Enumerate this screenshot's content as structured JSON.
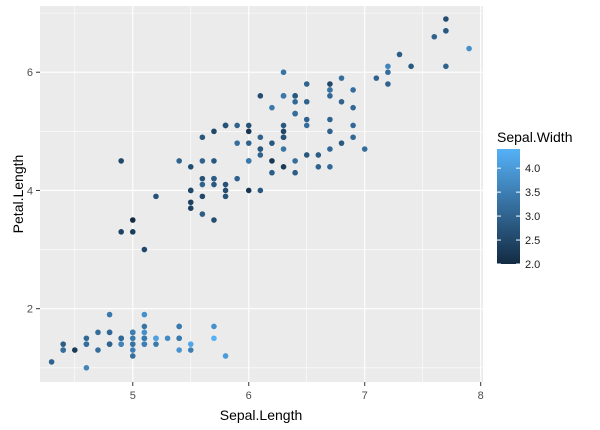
{
  "chart_data": {
    "type": "scatter",
    "title": "",
    "xlabel": "Sepal.Length",
    "ylabel": "Petal.Length",
    "xlim": [
      4.2,
      8.02
    ],
    "ylim": [
      0.76,
      7.12
    ],
    "x_ticks": [
      5,
      6,
      7,
      8
    ],
    "y_ticks": [
      2,
      4,
      6
    ],
    "x_tick_labels": [
      "5",
      "6",
      "7",
      "8"
    ],
    "y_tick_labels": [
      "2",
      "4",
      "6"
    ],
    "grid": true,
    "panel_background": "#ebebeb",
    "grid_color": "#ffffff",
    "legend": {
      "title": "Sepal.Width",
      "placement": "right",
      "type": "colorbar",
      "range": [
        2.0,
        4.4
      ],
      "breaks": [
        2.0,
        2.5,
        3.0,
        3.5,
        4.0
      ],
      "break_labels": [
        "2.0",
        "2.5",
        "3.0",
        "3.5",
        "4.0"
      ],
      "low_color": "#132b43",
      "high_color": "#56b1f7"
    },
    "color_variable": "Sepal.Width",
    "points": [
      [
        5.1,
        1.4,
        3.5
      ],
      [
        4.9,
        1.4,
        3.0
      ],
      [
        4.7,
        1.3,
        3.2
      ],
      [
        4.6,
        1.5,
        3.1
      ],
      [
        5.0,
        1.4,
        3.6
      ],
      [
        5.4,
        1.7,
        3.9
      ],
      [
        4.6,
        1.4,
        3.4
      ],
      [
        5.0,
        1.5,
        3.4
      ],
      [
        4.4,
        1.4,
        2.9
      ],
      [
        4.9,
        1.5,
        3.1
      ],
      [
        5.4,
        1.5,
        3.7
      ],
      [
        4.8,
        1.6,
        3.4
      ],
      [
        4.8,
        1.4,
        3.0
      ],
      [
        4.3,
        1.1,
        3.0
      ],
      [
        5.8,
        1.2,
        4.0
      ],
      [
        5.7,
        1.5,
        4.4
      ],
      [
        5.4,
        1.3,
        3.9
      ],
      [
        5.1,
        1.4,
        3.5
      ],
      [
        5.7,
        1.7,
        3.8
      ],
      [
        5.1,
        1.5,
        3.8
      ],
      [
        5.4,
        1.7,
        3.4
      ],
      [
        5.1,
        1.5,
        3.7
      ],
      [
        4.6,
        1.0,
        3.6
      ],
      [
        5.1,
        1.7,
        3.3
      ],
      [
        4.8,
        1.9,
        3.4
      ],
      [
        5.0,
        1.6,
        3.0
      ],
      [
        5.0,
        1.6,
        3.4
      ],
      [
        5.2,
        1.5,
        3.5
      ],
      [
        5.2,
        1.4,
        3.4
      ],
      [
        4.7,
        1.6,
        3.2
      ],
      [
        4.8,
        1.6,
        3.1
      ],
      [
        5.4,
        1.5,
        3.4
      ],
      [
        5.2,
        1.5,
        4.1
      ],
      [
        5.5,
        1.4,
        4.2
      ],
      [
        4.9,
        1.5,
        3.1
      ],
      [
        5.0,
        1.2,
        3.2
      ],
      [
        5.5,
        1.3,
        3.5
      ],
      [
        4.9,
        1.4,
        3.6
      ],
      [
        4.4,
        1.3,
        3.0
      ],
      [
        5.1,
        1.5,
        3.4
      ],
      [
        5.0,
        1.3,
        3.5
      ],
      [
        4.5,
        1.3,
        2.3
      ],
      [
        4.4,
        1.3,
        3.2
      ],
      [
        5.0,
        1.6,
        3.5
      ],
      [
        5.1,
        1.9,
        3.8
      ],
      [
        4.8,
        1.4,
        3.0
      ],
      [
        5.1,
        1.6,
        3.8
      ],
      [
        4.6,
        1.4,
        3.2
      ],
      [
        5.3,
        1.5,
        3.7
      ],
      [
        5.0,
        1.4,
        3.3
      ],
      [
        7.0,
        4.7,
        3.2
      ],
      [
        6.4,
        4.5,
        3.2
      ],
      [
        6.9,
        4.9,
        3.1
      ],
      [
        5.5,
        4.0,
        2.3
      ],
      [
        6.5,
        4.6,
        2.8
      ],
      [
        5.7,
        4.5,
        2.8
      ],
      [
        6.3,
        4.7,
        3.3
      ],
      [
        4.9,
        3.3,
        2.4
      ],
      [
        6.6,
        4.6,
        2.9
      ],
      [
        5.2,
        3.9,
        2.7
      ],
      [
        5.0,
        3.5,
        2.0
      ],
      [
        5.9,
        4.2,
        3.0
      ],
      [
        6.0,
        4.0,
        2.2
      ],
      [
        6.1,
        4.7,
        2.9
      ],
      [
        5.6,
        3.6,
        2.9
      ],
      [
        6.7,
        4.4,
        3.1
      ],
      [
        5.6,
        4.5,
        3.0
      ],
      [
        5.8,
        4.1,
        2.7
      ],
      [
        6.2,
        4.5,
        2.2
      ],
      [
        5.6,
        3.9,
        2.5
      ],
      [
        5.9,
        4.8,
        3.2
      ],
      [
        6.1,
        4.0,
        2.8
      ],
      [
        6.3,
        4.9,
        2.5
      ],
      [
        6.1,
        4.7,
        2.8
      ],
      [
        6.4,
        4.3,
        2.9
      ],
      [
        6.6,
        4.4,
        3.0
      ],
      [
        6.8,
        4.8,
        2.8
      ],
      [
        6.7,
        5.0,
        3.0
      ],
      [
        6.0,
        4.5,
        2.9
      ],
      [
        5.7,
        3.5,
        2.6
      ],
      [
        5.5,
        3.8,
        2.4
      ],
      [
        5.5,
        3.7,
        2.4
      ],
      [
        5.8,
        3.9,
        2.7
      ],
      [
        6.0,
        5.1,
        2.7
      ],
      [
        5.4,
        4.5,
        3.0
      ],
      [
        6.0,
        4.5,
        3.4
      ],
      [
        6.7,
        4.7,
        3.1
      ],
      [
        6.3,
        4.4,
        2.3
      ],
      [
        5.6,
        4.1,
        3.0
      ],
      [
        5.5,
        4.0,
        2.5
      ],
      [
        5.5,
        4.4,
        2.6
      ],
      [
        6.1,
        4.6,
        3.0
      ],
      [
        5.8,
        4.0,
        2.6
      ],
      [
        5.0,
        3.3,
        2.3
      ],
      [
        5.6,
        4.2,
        2.7
      ],
      [
        5.7,
        4.2,
        3.0
      ],
      [
        5.7,
        4.2,
        2.9
      ],
      [
        6.2,
        4.3,
        2.9
      ],
      [
        5.1,
        3.0,
        2.5
      ],
      [
        5.7,
        4.1,
        2.8
      ],
      [
        6.3,
        6.0,
        3.3
      ],
      [
        5.8,
        5.1,
        2.7
      ],
      [
        7.1,
        5.9,
        3.0
      ],
      [
        6.3,
        5.6,
        2.9
      ],
      [
        6.5,
        5.8,
        3.0
      ],
      [
        7.6,
        6.6,
        3.0
      ],
      [
        4.9,
        4.5,
        2.5
      ],
      [
        7.3,
        6.3,
        2.9
      ],
      [
        6.7,
        5.8,
        2.5
      ],
      [
        7.2,
        6.1,
        3.6
      ],
      [
        6.5,
        5.1,
        3.2
      ],
      [
        6.4,
        5.3,
        2.7
      ],
      [
        6.8,
        5.5,
        3.0
      ],
      [
        5.7,
        5.0,
        2.5
      ],
      [
        5.8,
        5.1,
        2.8
      ],
      [
        6.4,
        5.3,
        3.2
      ],
      [
        6.5,
        5.5,
        3.0
      ],
      [
        7.7,
        6.7,
        3.8
      ],
      [
        7.7,
        6.9,
        2.6
      ],
      [
        6.0,
        5.0,
        2.2
      ],
      [
        6.9,
        5.7,
        3.2
      ],
      [
        5.6,
        4.9,
        2.8
      ],
      [
        7.7,
        6.7,
        2.8
      ],
      [
        6.3,
        4.9,
        2.7
      ],
      [
        6.7,
        5.7,
        3.3
      ],
      [
        7.2,
        6.0,
        3.2
      ],
      [
        6.2,
        4.8,
        2.8
      ],
      [
        6.1,
        4.9,
        3.0
      ],
      [
        6.4,
        5.6,
        2.8
      ],
      [
        7.2,
        5.8,
        3.0
      ],
      [
        7.4,
        6.1,
        2.8
      ],
      [
        7.9,
        6.4,
        3.8
      ],
      [
        6.4,
        5.6,
        2.8
      ],
      [
        6.3,
        5.1,
        2.8
      ],
      [
        6.1,
        5.6,
        2.6
      ],
      [
        7.7,
        6.1,
        3.0
      ],
      [
        6.3,
        5.6,
        3.4
      ],
      [
        6.4,
        5.5,
        3.1
      ],
      [
        6.0,
        4.8,
        3.0
      ],
      [
        6.9,
        5.4,
        3.1
      ],
      [
        6.7,
        5.6,
        3.1
      ],
      [
        6.9,
        5.1,
        3.1
      ],
      [
        5.8,
        5.1,
        2.7
      ],
      [
        6.8,
        5.9,
        3.2
      ],
      [
        6.7,
        5.7,
        3.3
      ],
      [
        6.7,
        5.2,
        3.0
      ],
      [
        6.3,
        5.0,
        2.5
      ],
      [
        6.5,
        5.2,
        3.0
      ],
      [
        6.2,
        5.4,
        3.4
      ],
      [
        5.9,
        5.1,
        3.0
      ]
    ]
  }
}
